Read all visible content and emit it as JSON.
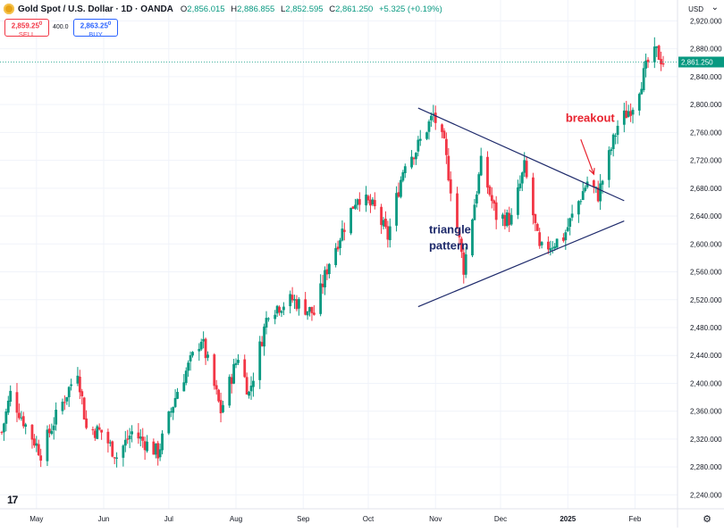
{
  "header": {
    "symbol": "Gold Spot / U.S. Dollar · 1D · OANDA",
    "ohlc": [
      {
        "k": "O",
        "v": "2,856.015"
      },
      {
        "k": "H",
        "v": "2,886.855"
      },
      {
        "k": "L",
        "v": "2,852.595"
      },
      {
        "k": "C",
        "v": "2,861.250"
      },
      {
        "k": "",
        "v": "+5.325 (+0.19%)"
      }
    ],
    "sell_price": "2,859.25",
    "sell_sup": "0",
    "sell_label": "SELL",
    "buy_price": "2,863.25",
    "buy_sup": "0",
    "buy_label": "BUY",
    "spread": "400.0",
    "currency": "USD"
  },
  "colors": {
    "up": "#089981",
    "down": "#f23645",
    "trendline": "#1e2a6b",
    "annotation_red": "#e8232f",
    "annotation_blue": "#1e2a6b",
    "grid": "#f0f3fa"
  },
  "chart_data": {
    "type": "candlestick",
    "title": "Gold Spot / U.S. Dollar · 1D · OANDA",
    "ylim": [
      2220,
      2950
    ],
    "y_ticks": [
      2240,
      2280,
      2320,
      2360,
      2400,
      2440,
      2480,
      2520,
      2560,
      2600,
      2640,
      2680,
      2720,
      2760,
      2800,
      2840,
      2880,
      2920
    ],
    "y_tick_labels": [
      "2,240.000",
      "2,280.000",
      "2,320.000",
      "2,360.000",
      "2,400.000",
      "2,440.000",
      "2,480.000",
      "2,520.000",
      "2,560.000",
      "2,600.000",
      "2,640.000",
      "2,680.000",
      "2,720.000",
      "2,760.000",
      "2,800.000",
      "2,840.000",
      "2,880.000",
      "2,920.000"
    ],
    "x_labels": [
      "May",
      "Jun",
      "Jul",
      "Aug",
      "Sep",
      "Oct",
      "Nov",
      "Dec",
      "2025",
      "Feb"
    ],
    "x_label_dates": [
      "2024-05-01",
      "2024-06-01",
      "2024-07-01",
      "2024-08-01",
      "2024-09-01",
      "2024-10-01",
      "2024-11-01",
      "2024-12-01",
      "2025-01-01",
      "2025-02-01"
    ],
    "date_range": [
      "2024-04-15",
      "2025-02-14"
    ],
    "grid": true,
    "legend": "none",
    "last_price": "2,861.250",
    "path": [
      [
        "2024-04-15",
        2330
      ],
      [
        "2024-04-19",
        2385
      ],
      [
        "2024-04-26",
        2340
      ],
      [
        "2024-05-03",
        2300
      ],
      [
        "2024-05-09",
        2345
      ],
      [
        "2024-05-20",
        2420
      ],
      [
        "2024-05-24",
        2335
      ],
      [
        "2024-05-31",
        2330
      ],
      [
        "2024-06-07",
        2295
      ],
      [
        "2024-06-14",
        2330
      ],
      [
        "2024-06-26",
        2300
      ],
      [
        "2024-07-05",
        2390
      ],
      [
        "2024-07-16",
        2465
      ],
      [
        "2024-07-25",
        2360
      ],
      [
        "2024-08-02",
        2440
      ],
      [
        "2024-08-07",
        2385
      ],
      [
        "2024-08-16",
        2505
      ],
      [
        "2024-08-27",
        2520
      ],
      [
        "2024-09-06",
        2500
      ],
      [
        "2024-09-13",
        2575
      ],
      [
        "2024-09-26",
        2670
      ],
      [
        "2024-10-04",
        2650
      ],
      [
        "2024-10-10",
        2610
      ],
      [
        "2024-10-18",
        2720
      ],
      [
        "2024-10-23",
        2735
      ],
      [
        "2024-10-31",
        2785
      ],
      [
        "2024-11-05",
        2740
      ],
      [
        "2024-11-14",
        2565
      ],
      [
        "2024-11-22",
        2715
      ],
      [
        "2024-11-29",
        2640
      ],
      [
        "2024-12-06",
        2635
      ],
      [
        "2024-12-12",
        2710
      ],
      [
        "2024-12-19",
        2590
      ],
      [
        "2024-12-30",
        2610
      ],
      [
        "2025-01-10",
        2690
      ],
      [
        "2025-01-15",
        2670
      ],
      [
        "2025-01-24",
        2770
      ],
      [
        "2025-01-31",
        2800
      ],
      [
        "2025-02-07",
        2860
      ],
      [
        "2025-02-11",
        2875
      ],
      [
        "2025-02-14",
        2861
      ]
    ],
    "candle_every_n_days": 1,
    "candle_body_scale": 0.55,
    "trendlines": [
      {
        "name": "triangle-upper",
        "from": [
          "2024-10-24",
          2795
        ],
        "to": [
          "2025-01-27",
          2662
        ]
      },
      {
        "name": "triangle-lower",
        "from": [
          "2024-10-24",
          2510
        ],
        "to": [
          "2025-01-27",
          2633
        ]
      }
    ],
    "annotations": [
      {
        "text": "breakout",
        "at": [
          "2024-12-31",
          2775
        ],
        "color": "red"
      },
      {
        "text": "triangle",
        "at": [
          "2024-10-29",
          2615
        ],
        "color": "blue"
      },
      {
        "text": "pattern",
        "at": [
          "2024-10-29",
          2592
        ],
        "color": "blue"
      }
    ],
    "arrow": {
      "from": [
        "2025-01-07",
        2750
      ],
      "to": [
        "2025-01-13",
        2700
      ]
    }
  }
}
